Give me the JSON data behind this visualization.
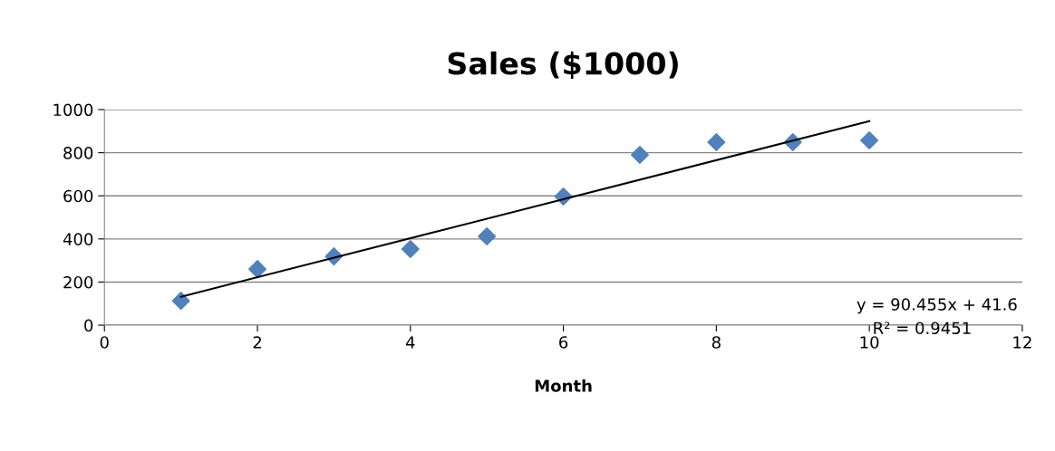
{
  "chart_data": {
    "type": "scatter",
    "title": "Sales ($1000)",
    "xlabel": "Month",
    "x": [
      1,
      2,
      3,
      4,
      5,
      6,
      7,
      8,
      9,
      10
    ],
    "series": [
      {
        "color": "#4f81bd",
        "marker": "diamond",
        "values": [
          113,
          260,
          319,
          353,
          412,
          597,
          790,
          849,
          849,
          857
        ]
      },
      {
        "type": "line",
        "color": "#000000",
        "marker": "none",
        "line_style": "solid",
        "x": [
          1,
          10
        ],
        "values": [
          132,
          946
        ]
      }
    ],
    "annotations": [
      "y = 90.455x + 41.6",
      "R² = 0.9451"
    ],
    "xlim": [
      0,
      12
    ],
    "xticks": [
      0,
      2,
      4,
      6,
      8,
      10,
      12
    ],
    "ylim": [
      0,
      1000
    ],
    "yticks": [
      0,
      200,
      400,
      600,
      800,
      1000
    ],
    "grid": "y",
    "legend": false
  }
}
